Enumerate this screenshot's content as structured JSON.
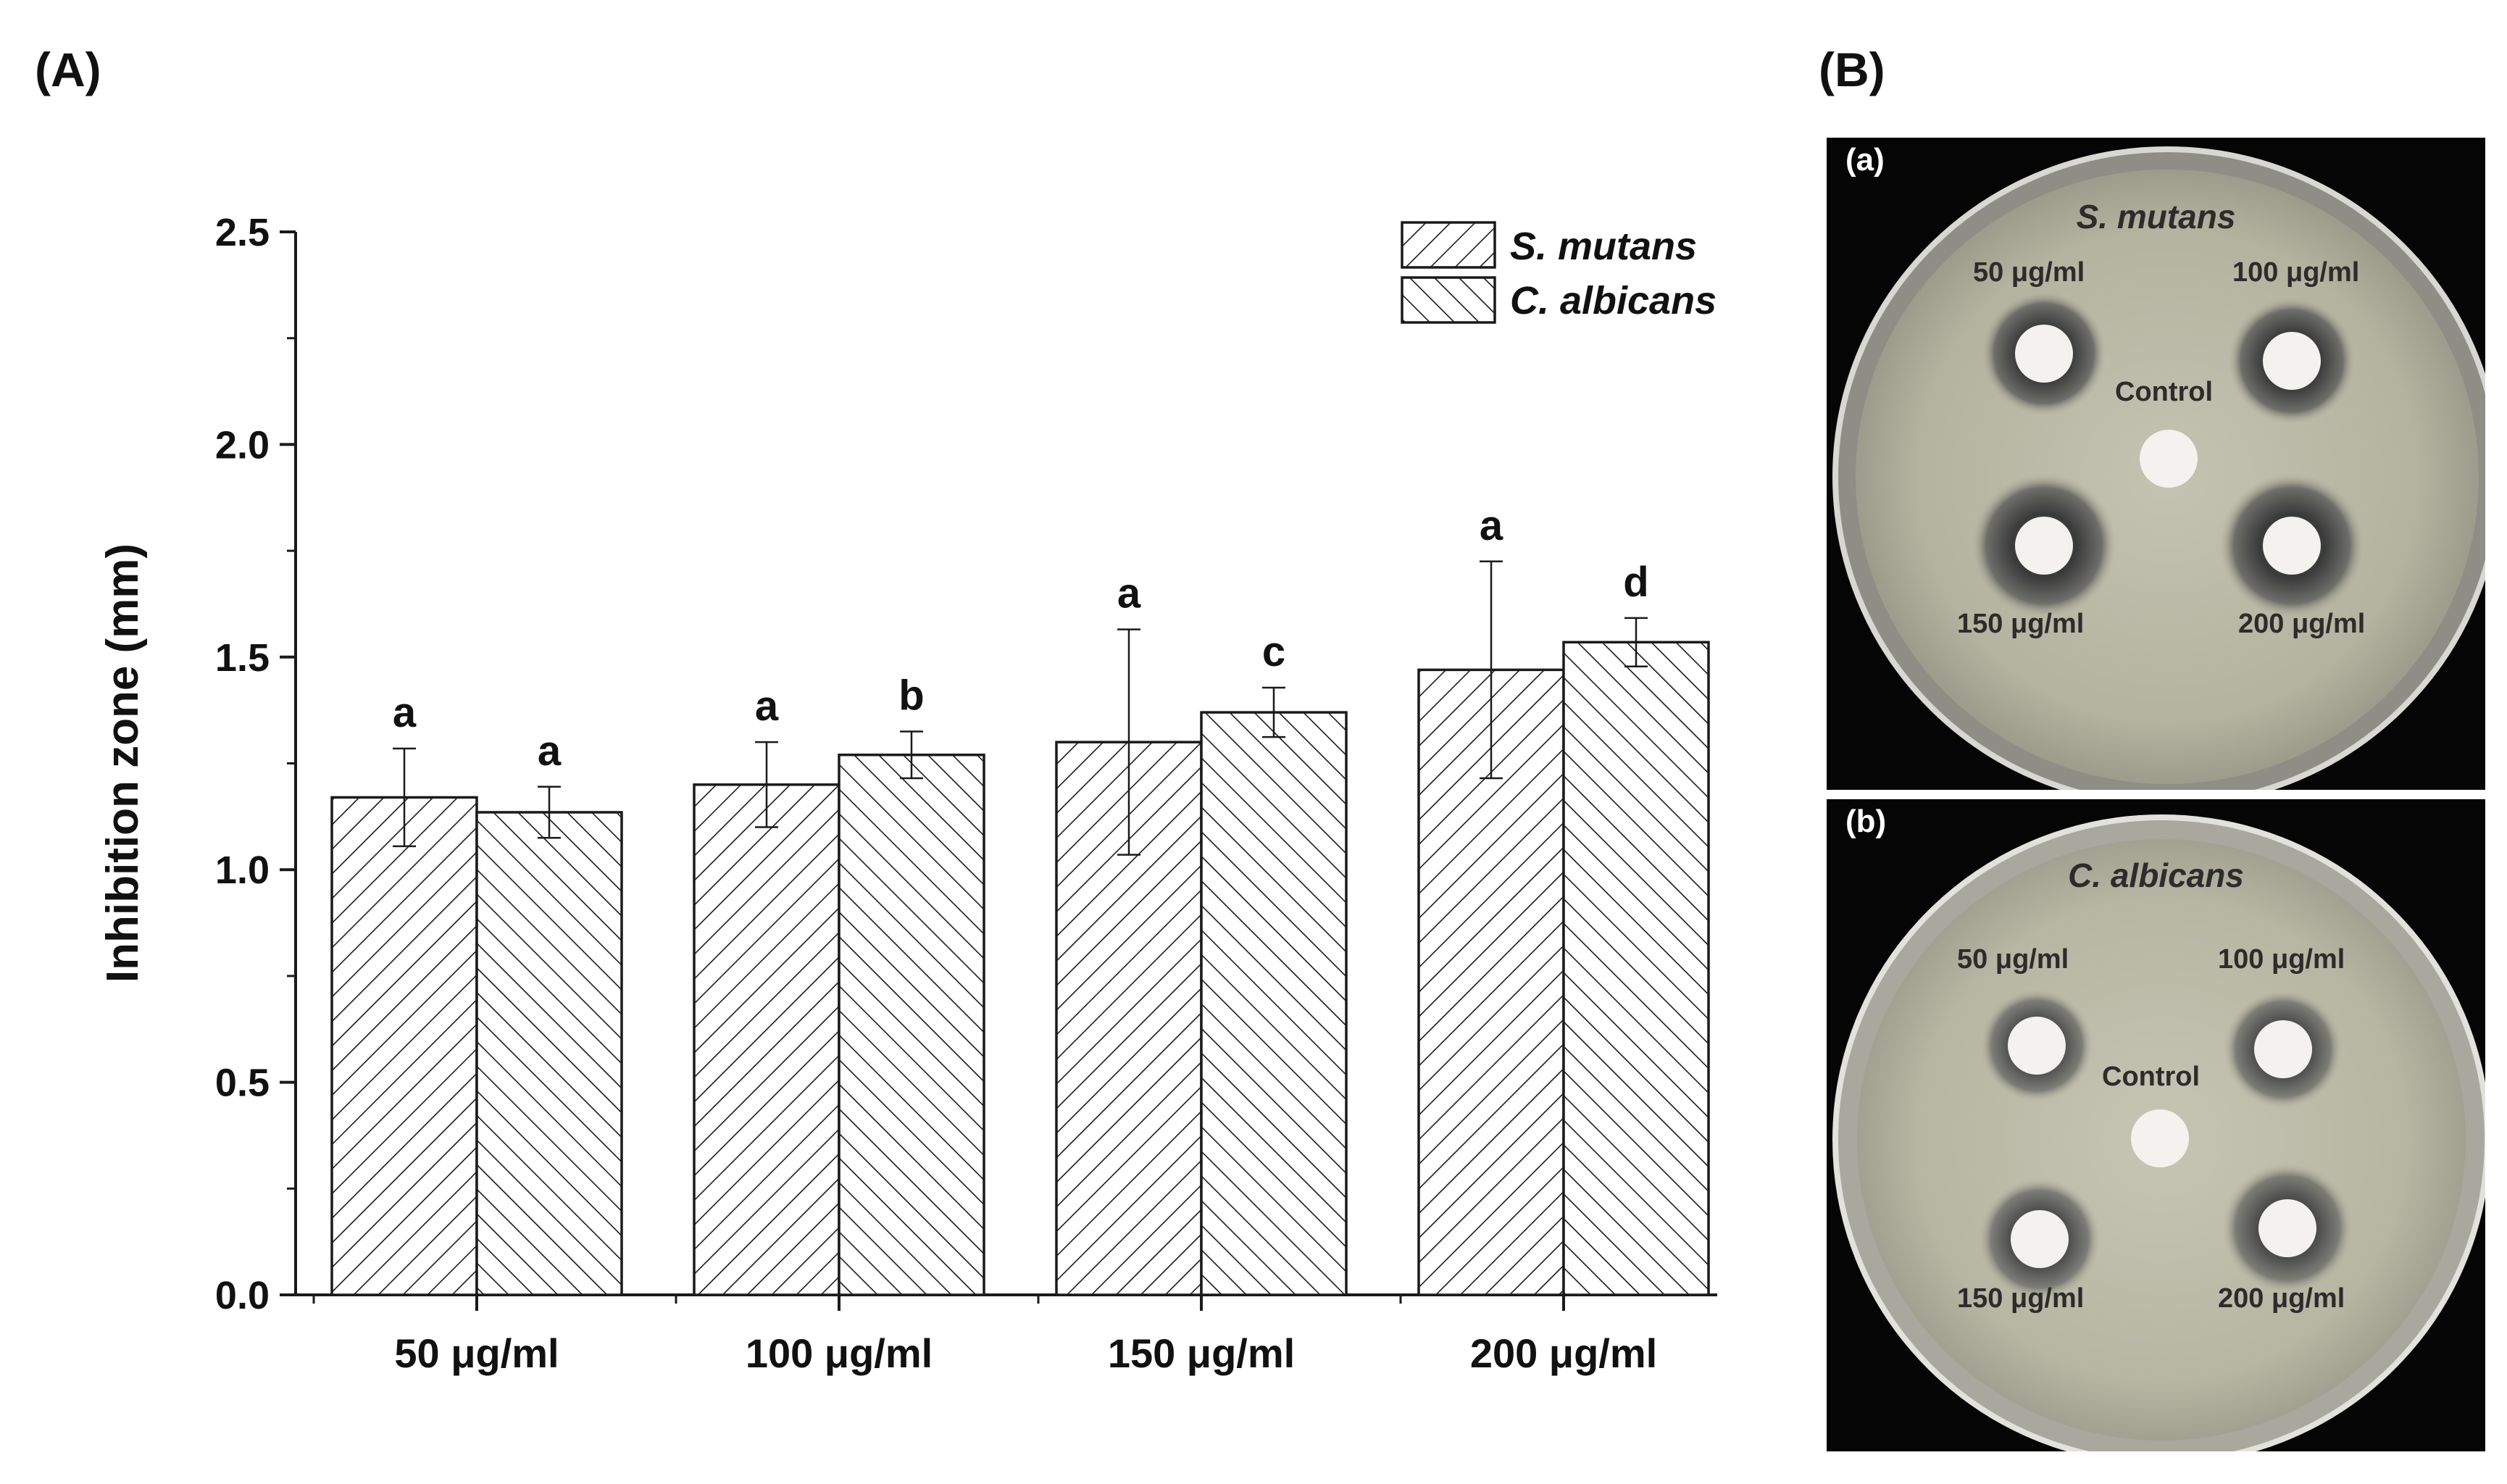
{
  "panels": {
    "a_label": "(A)",
    "b_label": "(B)"
  },
  "chart_data": {
    "type": "bar",
    "title": "",
    "xlabel": "",
    "ylabel": "Inhibition zone (mm)",
    "ylim": [
      0,
      2.5
    ],
    "yticks": [
      "0.0",
      "0.5",
      "1.0",
      "1.5",
      "2.0",
      "2.5"
    ],
    "categories": [
      "50 μg/ml",
      "100 μg/ml",
      "150 μg/ml",
      "200 μg/ml"
    ],
    "legend_position": "top-right",
    "grid": false,
    "series": [
      {
        "name": "S. mutans",
        "hatch": "forward-diagonal",
        "values": [
          1.17,
          1.2,
          1.3,
          1.47
        ],
        "errors": [
          0.115,
          0.1,
          0.265,
          0.255
        ],
        "letters": [
          "a",
          "a",
          "a",
          "a"
        ]
      },
      {
        "name": "C. albicans",
        "hatch": "backward-diagonal",
        "values": [
          1.135,
          1.27,
          1.37,
          1.535
        ],
        "errors": [
          0.06,
          0.055,
          0.058,
          0.057
        ],
        "letters": [
          "a",
          "b",
          "c",
          "d"
        ]
      }
    ]
  },
  "plates": [
    {
      "sublabel": "(a)",
      "organism": "S. mutans",
      "labels": {
        "c50": "50 μg/ml",
        "c100": "100 μg/ml",
        "control": "Control",
        "c150": "150 μg/ml",
        "c200": "200 μg/ml"
      }
    },
    {
      "sublabel": "(b)",
      "organism": "C. albicans",
      "labels": {
        "c50": "50 μg/ml",
        "c100": "100 μg/ml",
        "control": "Control",
        "c150": "150 μg/ml",
        "c200": "200 μg/ml"
      }
    }
  ],
  "colors": {
    "bar_fill": "#ffffff",
    "bar_stroke": "#1a1a1a",
    "hatch": "#1a1a1a",
    "plate_bg": "#050505",
    "agar": "#b9b8a6"
  }
}
